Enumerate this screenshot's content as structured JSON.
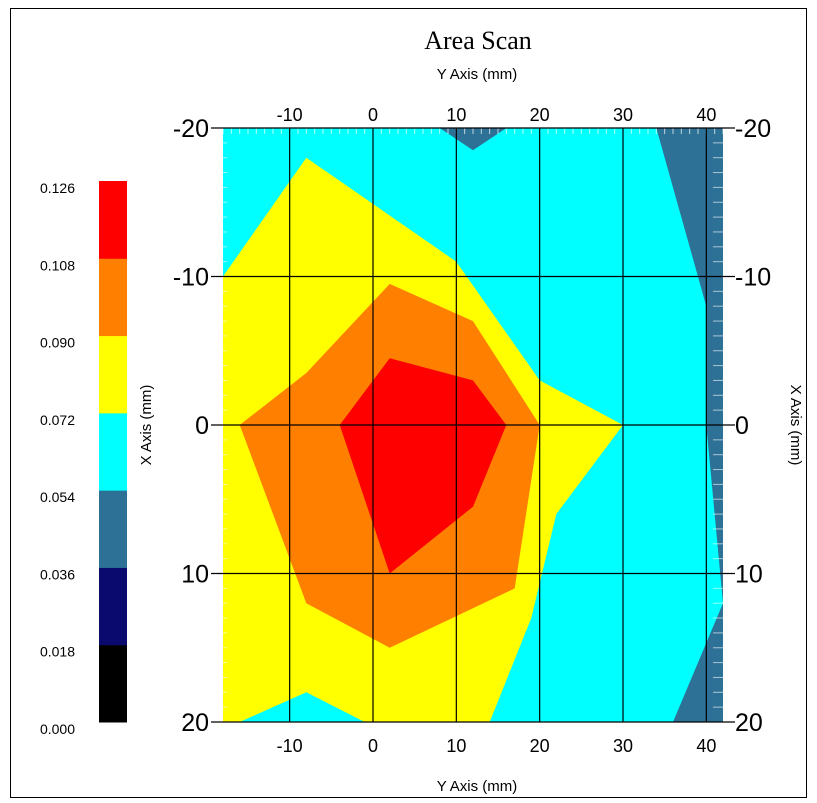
{
  "chart_data": {
    "type": "heatmap",
    "title": "Area Scan",
    "xlabel": "Y Axis (mm)",
    "ylabel": "X Axis (mm)",
    "xlim": [
      -18,
      42
    ],
    "ylim": [
      -20,
      20
    ],
    "x_ticks": [
      -10,
      0,
      10,
      20,
      30,
      40
    ],
    "x_tick_labels": [
      "-10",
      "0",
      "10",
      "20",
      "30",
      "40"
    ],
    "y_ticks": [
      -20,
      -10,
      0,
      10,
      20
    ],
    "y_tick_labels": [
      "-20",
      "-10",
      "0",
      "10",
      "20"
    ],
    "grid": true,
    "colorbar": {
      "labels": [
        "0.000",
        "0.018",
        "0.036",
        "0.054",
        "0.072",
        "0.090",
        "0.108",
        "0.126"
      ],
      "colors": [
        "#000000",
        "#0a0a6e",
        "#2e7196",
        "#00ffff",
        "#ffff00",
        "#ff8000",
        "#ff0000"
      ]
    },
    "contours": [
      {
        "level_min": 0.054,
        "level_max": 0.072,
        "color": "#2e7196",
        "points": [
          [
            -18,
            -20
          ],
          [
            42,
            -20
          ],
          [
            42,
            20
          ],
          [
            -18,
            20
          ]
        ]
      },
      {
        "level_min": 0.072,
        "level_max": 0.09,
        "color": "#00ffff",
        "points": [
          [
            -18,
            -20
          ],
          [
            34,
            -20
          ],
          [
            40,
            -8
          ],
          [
            40,
            0
          ],
          [
            42,
            12
          ],
          [
            36,
            20
          ],
          [
            -18,
            20
          ]
        ]
      },
      {
        "level_min": 0.09,
        "level_max": 0.108,
        "color": "#ffff00",
        "points": [
          [
            -18,
            -10
          ],
          [
            -8,
            -18
          ],
          [
            10,
            -11
          ],
          [
            20,
            -3
          ],
          [
            30,
            0
          ],
          [
            22,
            6
          ],
          [
            19,
            13
          ],
          [
            14,
            20
          ],
          [
            -1,
            20
          ],
          [
            -8,
            18
          ],
          [
            -16,
            20
          ],
          [
            -18,
            20
          ]
        ]
      },
      {
        "level_min": 0.108,
        "level_max": 0.126,
        "color": "#ff8000",
        "points": [
          [
            -16,
            0
          ],
          [
            -8,
            -3.5
          ],
          [
            2,
            -9.5
          ],
          [
            12,
            -7
          ],
          [
            20,
            0
          ],
          [
            17,
            11
          ],
          [
            2,
            15
          ],
          [
            -8,
            12
          ]
        ]
      },
      {
        "level_min": 0.126,
        "level_max": null,
        "color": "#ff0000",
        "points": [
          [
            -4,
            0
          ],
          [
            2,
            -4.5
          ],
          [
            12,
            -3
          ],
          [
            16,
            0
          ],
          [
            12,
            5.5
          ],
          [
            2,
            10
          ]
        ]
      }
    ],
    "corner_patch_top": {
      "color": "#2e7196",
      "points": [
        [
          8,
          -20
        ],
        [
          16,
          -20
        ],
        [
          12,
          -18.5
        ]
      ]
    }
  }
}
